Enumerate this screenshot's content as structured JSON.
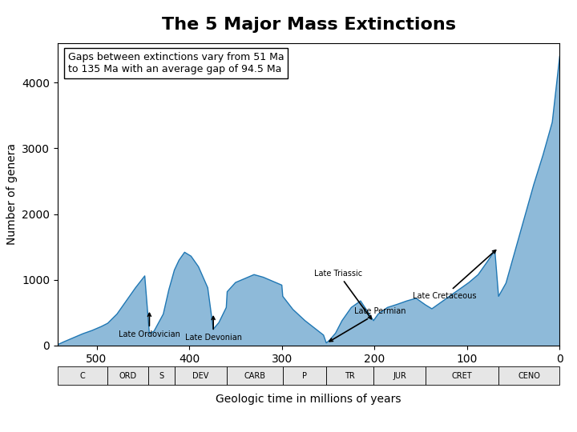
{
  "chart_data": {
    "type": "area",
    "title": "The 5 Major Mass Extinctions",
    "xlabel": "Geologic time in millions of years",
    "ylabel": "Number of genera",
    "x": [
      542,
      535,
      525,
      515,
      505,
      495,
      488,
      478,
      468,
      458,
      448,
      443,
      438,
      428,
      422,
      416,
      411,
      405,
      398,
      390,
      380,
      374,
      368,
      360,
      359,
      350,
      340,
      330,
      320,
      310,
      300,
      299,
      288,
      275,
      265,
      255,
      252,
      248,
      242,
      235,
      225,
      215,
      201,
      196,
      186,
      175,
      165,
      155,
      145,
      138,
      128,
      118,
      108,
      98,
      88,
      78,
      70,
      66,
      58,
      48,
      38,
      28,
      18,
      8,
      0
    ],
    "values": [
      15,
      60,
      120,
      180,
      230,
      290,
      340,
      480,
      680,
      880,
      1060,
      180,
      220,
      480,
      850,
      1150,
      1300,
      1420,
      1360,
      1200,
      880,
      250,
      350,
      580,
      820,
      960,
      1020,
      1080,
      1040,
      980,
      920,
      750,
      550,
      380,
      270,
      160,
      40,
      90,
      190,
      380,
      580,
      680,
      380,
      480,
      580,
      630,
      680,
      720,
      620,
      560,
      660,
      760,
      860,
      960,
      1080,
      1280,
      1450,
      750,
      950,
      1450,
      1950,
      2450,
      2900,
      3400,
      4400
    ],
    "xlim": [
      542,
      0
    ],
    "ylim": [
      0,
      4600
    ],
    "xticks": [
      500,
      400,
      300,
      200,
      100,
      0
    ],
    "yticks": [
      0,
      1000,
      2000,
      3000,
      4000
    ],
    "grid": false,
    "annotation": "Gaps between extinctions vary from 51 Ma\nto 135 Ma with an average gap of 94.5 Ma",
    "annotations": [
      {
        "text": "Late Ordovician",
        "x": 443,
        "y": 550
      },
      {
        "text": "Late Devonian",
        "x": 374,
        "y": 500
      },
      {
        "text": "Late Permian",
        "x": 252,
        "y": 35
      },
      {
        "text": "Late Triassic",
        "x": 201,
        "y": 360
      },
      {
        "text": "Late Cretaceous",
        "x": 66,
        "y": 1490
      }
    ],
    "periods": {
      "labels": [
        "C",
        "ORD",
        "S",
        "DEV",
        "CARB",
        "P",
        "TR",
        "JUR",
        "CRET",
        "CENO"
      ],
      "boundaries": [
        542,
        488,
        444,
        416,
        359,
        299,
        252,
        201,
        145,
        66,
        0
      ]
    }
  }
}
